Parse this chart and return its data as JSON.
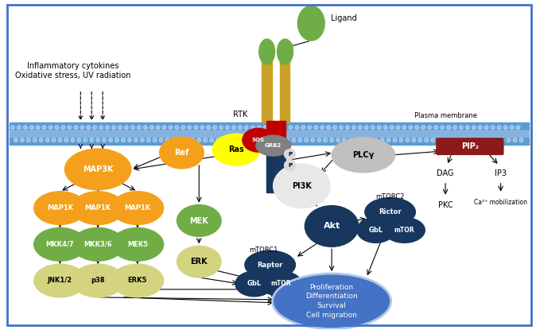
{
  "bg_color": "#ffffff",
  "border_color": "#4472c4",
  "membrane_color": "#5b9bd5",
  "plasma_membrane_label": "Plasma membrane",
  "inflammatory_text": "Inflammatory cytokines\nOxidative stress, UV radiation",
  "rtk_label": "RTK",
  "ligand_label": "Ligand"
}
